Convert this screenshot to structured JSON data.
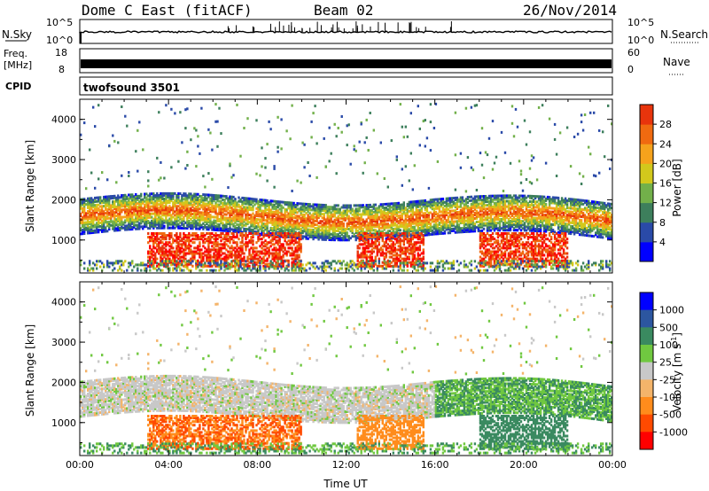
{
  "header": {
    "title": "Dome C East (fitACF)",
    "beam": "Beam 02",
    "date": "26/Nov/2014"
  },
  "params": {
    "nsky_label": "N.Sky",
    "nsky_top": "10^5",
    "nsky_bottom": "10^0",
    "nsearch_label": "N.Search",
    "nsearch_top": "10^5",
    "nsearch_bottom": "10^0",
    "freq_label_1": "Freq.",
    "freq_label_2": "[MHz]",
    "freq_top": "18",
    "freq_bottom": "8",
    "nave_label": "Nave",
    "nave_top": "60",
    "nave_bottom": "0",
    "cpid_label": "CPID",
    "cpid_value": "twofsound 3501"
  },
  "colors": {
    "power": [
      "#0000ff",
      "#2a4aa8",
      "#3d7f5c",
      "#72b04a",
      "#d2c81c",
      "#f5a21c",
      "#f06a10",
      "#e8340c",
      "#ff0000"
    ],
    "velocity": [
      "#ff0000",
      "#ff4a00",
      "#ff8c1c",
      "#f4b46a",
      "#c8c8c8",
      "#70c840",
      "#3a8a60",
      "#2c56a0",
      "#0000ff"
    ],
    "blank": "#ffffff"
  },
  "chart_data": [
    {
      "type": "heatmap",
      "name": "power",
      "title": "",
      "ylabel": "Slant Range [km]",
      "xlabel": "",
      "xlim": [
        "00:00",
        "00:00"
      ],
      "ylim": [
        180,
        4500
      ],
      "x_ticks": [
        "00:00",
        "04:00",
        "08:00",
        "12:00",
        "16:00",
        "20:00",
        "00:00"
      ],
      "y_ticks": [
        "1000",
        "2000",
        "3000",
        "4000"
      ],
      "colorbar": {
        "label": "Power [dB]",
        "ticks": [
          "4",
          "8",
          "12",
          "16",
          "20",
          "24",
          "28"
        ],
        "range": [
          0,
          32
        ]
      }
    },
    {
      "type": "heatmap",
      "name": "velocity",
      "title": "",
      "ylabel": "Slant Range [km]",
      "xlabel": "Time UT",
      "xlim": [
        "00:00",
        "00:00"
      ],
      "ylim": [
        180,
        4500
      ],
      "x_ticks": [
        "00:00",
        "04:00",
        "08:00",
        "12:00",
        "16:00",
        "20:00",
        "00:00"
      ],
      "y_ticks": [
        "1000",
        "2000",
        "3000",
        "4000"
      ],
      "colorbar": {
        "label": "Velocity [m s^-1]",
        "ticks": [
          "1000",
          "500",
          "100",
          "25",
          "-25",
          "-100",
          "-500",
          "-1000"
        ]
      }
    }
  ]
}
